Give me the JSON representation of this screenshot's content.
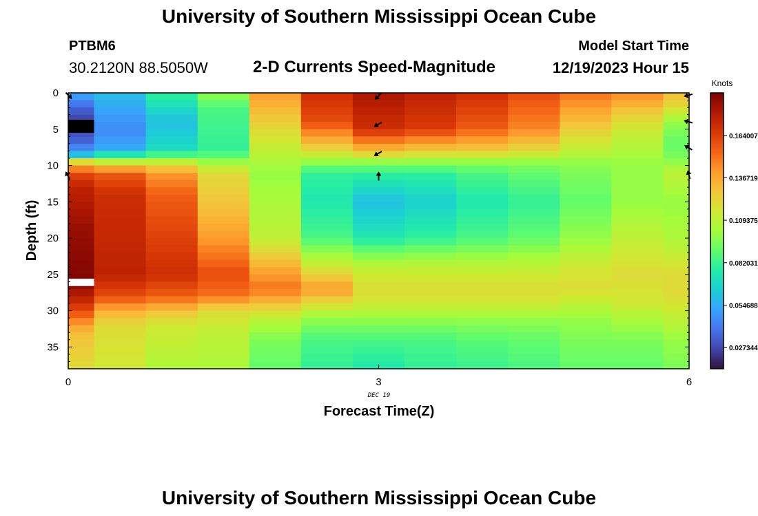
{
  "header": {
    "title": "University of Southern Mississippi Ocean Cube",
    "station_id": "PTBM6",
    "station_coords": "30.2120N  88.5050W",
    "chart_title": "2-D Currents Speed-Magnitude",
    "model_label": "Model Start Time",
    "model_time": "12/19/2023 Hour 15",
    "title_repeat": "University of Southern Mississippi Ocean Cube"
  },
  "colormap": [
    "#30123b",
    "#4145ab",
    "#4675ed",
    "#39a2fc",
    "#1bcfd4",
    "#24eca6",
    "#61fc6c",
    "#a4fc3b",
    "#d1e834",
    "#f3c63a",
    "#fe9b2d",
    "#f36315",
    "#d93806",
    "#b11901",
    "#7a0403"
  ],
  "chart_data": {
    "type": "heatmap",
    "title": "2-D Currents Speed-Magnitude",
    "xlabel": "Forecast Time(Z)",
    "ylabel": "Depth (ft)",
    "x_date_label": "DEC 19",
    "colorbar_label": "Knots",
    "xlim": [
      0,
      6
    ],
    "ylim": [
      38,
      0
    ],
    "x_ticks": [
      0,
      3,
      6
    ],
    "y_ticks": [
      0,
      5,
      10,
      15,
      20,
      25,
      30,
      35
    ],
    "colorbar_ticks": [
      "0.164007",
      "0.136719",
      "0.109375",
      "0.082031",
      "0.054688",
      "0.027344"
    ],
    "colorbar_tick_values": [
      0.164007,
      0.136719,
      0.109375,
      0.082031,
      0.054688,
      0.027344
    ],
    "vmin": 0.0137,
    "vmax": 0.1914,
    "x_edges": [
      0,
      0.25,
      0.75,
      1.25,
      1.75,
      2.25,
      2.75,
      3.25,
      3.75,
      4.25,
      4.75,
      5.25,
      5.75,
      6
    ],
    "depth_bin_ft": 1,
    "profiles": [
      {
        "x": 0,
        "depths": [
          0,
          2,
          4,
          7,
          8.5,
          9.5,
          11,
          13,
          19,
          26,
          29,
          31,
          33,
          38
        ],
        "values": [
          0.055,
          0.035,
          0.025,
          0.035,
          0.06,
          0.12,
          0.16,
          0.175,
          0.185,
          0.19,
          0.17,
          0.15,
          0.13,
          0.12
        ]
      },
      {
        "x": 0.5,
        "depths": [
          0,
          5,
          8,
          9.5,
          11,
          14,
          25,
          28,
          30,
          32,
          38
        ],
        "values": [
          0.06,
          0.045,
          0.055,
          0.11,
          0.155,
          0.17,
          0.175,
          0.16,
          0.135,
          0.12,
          0.115
        ]
      },
      {
        "x": 1,
        "depths": [
          0,
          4,
          8,
          9.5,
          11,
          14,
          25,
          28,
          30,
          32,
          38
        ],
        "values": [
          0.08,
          0.06,
          0.07,
          0.11,
          0.14,
          0.155,
          0.17,
          0.155,
          0.13,
          0.115,
          0.105
        ]
      },
      {
        "x": 1.5,
        "depths": [
          0,
          2,
          8,
          9.5,
          11,
          16,
          20,
          25,
          28,
          30,
          33,
          38
        ],
        "values": [
          0.1,
          0.085,
          0.08,
          0.1,
          0.12,
          0.13,
          0.14,
          0.16,
          0.15,
          0.12,
          0.11,
          0.105
        ]
      },
      {
        "x": 2,
        "depths": [
          0,
          4,
          8,
          11,
          20,
          24,
          27,
          29,
          31,
          34,
          38
        ],
        "values": [
          0.14,
          0.125,
          0.11,
          0.1,
          0.11,
          0.135,
          0.15,
          0.13,
          0.11,
          0.095,
          0.09
        ]
      },
      {
        "x": 2.5,
        "depths": [
          0,
          4,
          8,
          9.5,
          11,
          15,
          20,
          24,
          27,
          29,
          31,
          34,
          38
        ],
        "values": [
          0.17,
          0.16,
          0.12,
          0.1,
          0.08,
          0.075,
          0.085,
          0.115,
          0.14,
          0.12,
          0.1,
          0.085,
          0.08
        ]
      },
      {
        "x": 3,
        "depths": [
          0,
          5,
          8,
          9.5,
          11,
          15,
          20,
          24,
          27,
          29,
          31,
          34,
          38
        ],
        "values": [
          0.18,
          0.17,
          0.13,
          0.1,
          0.08,
          0.06,
          0.075,
          0.11,
          0.12,
          0.115,
          0.1,
          0.085,
          0.075
        ]
      },
      {
        "x": 3.5,
        "depths": [
          0,
          5,
          8,
          9.5,
          11,
          15,
          20,
          24,
          27,
          29,
          31,
          34,
          38
        ],
        "values": [
          0.175,
          0.165,
          0.125,
          0.1,
          0.08,
          0.065,
          0.08,
          0.11,
          0.12,
          0.115,
          0.1,
          0.085,
          0.08
        ]
      },
      {
        "x": 4,
        "depths": [
          0,
          5,
          8,
          9.5,
          11,
          15,
          20,
          24,
          27,
          29,
          31,
          34,
          38
        ],
        "values": [
          0.17,
          0.155,
          0.125,
          0.1,
          0.085,
          0.075,
          0.085,
          0.11,
          0.12,
          0.115,
          0.1,
          0.088,
          0.082
        ]
      },
      {
        "x": 4.5,
        "depths": [
          0,
          5,
          8,
          9.5,
          11,
          15,
          20,
          24,
          27,
          29,
          31,
          34,
          38
        ],
        "values": [
          0.16,
          0.145,
          0.12,
          0.1,
          0.09,
          0.08,
          0.09,
          0.11,
          0.12,
          0.115,
          0.1,
          0.09,
          0.085
        ]
      },
      {
        "x": 5,
        "depths": [
          0,
          5,
          8,
          9.5,
          11,
          15,
          20,
          24,
          27,
          29,
          31,
          34,
          38
        ],
        "values": [
          0.15,
          0.125,
          0.11,
          0.1,
          0.095,
          0.09,
          0.1,
          0.115,
          0.12,
          0.11,
          0.1,
          0.095,
          0.09
        ]
      },
      {
        "x": 5.5,
        "depths": [
          0,
          3,
          6,
          10,
          15,
          20,
          25,
          29,
          31,
          34,
          38
        ],
        "values": [
          0.145,
          0.125,
          0.11,
          0.1,
          0.1,
          0.11,
          0.12,
          0.115,
          0.105,
          0.095,
          0.09
        ]
      },
      {
        "x": 6,
        "depths": [
          0,
          2,
          4,
          7,
          9,
          11,
          15,
          20,
          25,
          28,
          31,
          34,
          38
        ],
        "values": [
          0.13,
          0.12,
          0.1,
          0.09,
          0.095,
          0.11,
          0.1,
          0.105,
          0.12,
          0.12,
          0.11,
          0.1,
          0.095
        ]
      }
    ],
    "missing_cells": [
      {
        "x_from": 0,
        "x_to": 0.25,
        "depth_from": 3.7,
        "depth_to": 5.5,
        "fill": "#000000"
      },
      {
        "x_from": 0,
        "x_to": 0.25,
        "depth_from": 25.6,
        "depth_to": 26.6,
        "fill": "#ffffff"
      }
    ],
    "current_arrows": [
      {
        "x": 0,
        "depth": 0.3,
        "direction_deg": 135
      },
      {
        "x": 0,
        "depth": 11.5,
        "direction_deg": 330
      },
      {
        "x": 3,
        "depth": 0.4,
        "direction_deg": 225
      },
      {
        "x": 3,
        "depth": 4.3,
        "direction_deg": 240
      },
      {
        "x": 3,
        "depth": 8.3,
        "direction_deg": 240
      },
      {
        "x": 3,
        "depth": 11.6,
        "direction_deg": 0
      },
      {
        "x": 6,
        "depth": 0.3,
        "direction_deg": 255
      },
      {
        "x": 6,
        "depth": 4.0,
        "direction_deg": 285
      },
      {
        "x": 6,
        "depth": 7.6,
        "direction_deg": 300
      },
      {
        "x": 6,
        "depth": 11.4,
        "direction_deg": 345
      }
    ]
  }
}
